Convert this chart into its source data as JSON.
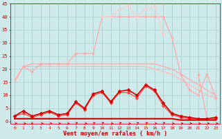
{
  "x": [
    0,
    1,
    2,
    3,
    4,
    5,
    6,
    7,
    8,
    9,
    10,
    11,
    12,
    13,
    14,
    15,
    16,
    17,
    18,
    19,
    20,
    21,
    22,
    23
  ],
  "background_color": "#ceeaea",
  "grid_color": "#aacccc",
  "xlabel": "Vent moyen/en rafales ( km/h )",
  "ylim": [
    0,
    45
  ],
  "xlim": [
    -0.5,
    23.5
  ],
  "yticks": [
    0,
    5,
    10,
    15,
    20,
    25,
    30,
    35,
    40,
    45
  ],
  "line_smooth1": {
    "color": "#ffbbbb",
    "values": [
      16,
      21,
      21,
      21,
      21,
      21,
      21,
      21,
      21,
      21,
      21,
      21,
      21,
      21,
      21,
      21,
      20,
      19,
      18,
      16,
      14,
      12,
      10,
      9
    ],
    "linewidth": 0.9,
    "marker": null
  },
  "line_smooth2": {
    "color": "#ffaaaa",
    "values": [
      15,
      21,
      22,
      22,
      22,
      22,
      22,
      22,
      22,
      22,
      22,
      22,
      22,
      22,
      22,
      22,
      22,
      21,
      20,
      18,
      16,
      14,
      12,
      10
    ],
    "linewidth": 0.9,
    "marker": null
  },
  "line_rafale_light": {
    "color": "#ffaaaa",
    "values": [
      null,
      21,
      19,
      22,
      22,
      22,
      22,
      26,
      26,
      26,
      40,
      40,
      40,
      40,
      40,
      40,
      40,
      40,
      32,
      18,
      12,
      10,
      18,
      9
    ],
    "linewidth": 0.9,
    "marker": "D",
    "markersize": 2.0
  },
  "line_rafale_peak": {
    "color": "#ffcccc",
    "values": [
      null,
      null,
      null,
      null,
      null,
      null,
      null,
      null,
      null,
      null,
      40,
      40,
      43,
      44,
      40,
      43,
      44,
      33,
      null,
      null,
      null,
      null,
      null,
      null
    ],
    "linewidth": 0.9,
    "marker": "D",
    "markersize": 2.0
  },
  "line_vent_med": {
    "color": "#ff4444",
    "values": [
      2,
      3,
      1.5,
      2.5,
      3.5,
      2,
      2.5,
      7,
      4.5,
      10,
      11,
      7,
      11,
      11,
      9,
      13.5,
      11.5,
      6,
      2.5,
      1.5,
      1,
      1,
      1,
      1
    ],
    "linewidth": 0.9,
    "marker": "D",
    "markersize": 2.5
  },
  "line_vent_dark": {
    "color": "#cc0000",
    "values": [
      2,
      4,
      2,
      3,
      4,
      2.5,
      3,
      7.5,
      5,
      10.5,
      11.5,
      7.5,
      11.5,
      12,
      10,
      14,
      12,
      7,
      3,
      2,
      1.5,
      1,
      1,
      1.5
    ],
    "linewidth": 1.2,
    "marker": "D",
    "markersize": 2.5
  },
  "line_base": {
    "color": "#cc0000",
    "values": [
      1,
      1,
      1,
      1,
      1,
      1,
      1,
      1,
      1,
      1,
      1,
      1,
      1,
      1,
      1,
      1,
      1,
      1,
      1,
      0.5,
      0.5,
      0.5,
      0.5,
      0.5
    ],
    "linewidth": 1.5,
    "marker": null
  },
  "line_peak_right": {
    "color": "#ffaaaa",
    "values": [
      null,
      null,
      null,
      null,
      null,
      null,
      null,
      null,
      null,
      null,
      null,
      null,
      null,
      null,
      null,
      null,
      null,
      null,
      null,
      null,
      null,
      18,
      1,
      null
    ],
    "linewidth": 0.9,
    "marker": "D",
    "markersize": 2.0
  },
  "arrow_color": "#cc0000",
  "arrow_dirs": [
    0,
    0,
    1,
    0,
    0,
    0,
    0,
    2,
    0,
    2,
    2,
    0,
    2,
    0,
    2,
    2,
    0,
    2,
    0,
    0,
    0,
    0,
    0,
    0
  ]
}
